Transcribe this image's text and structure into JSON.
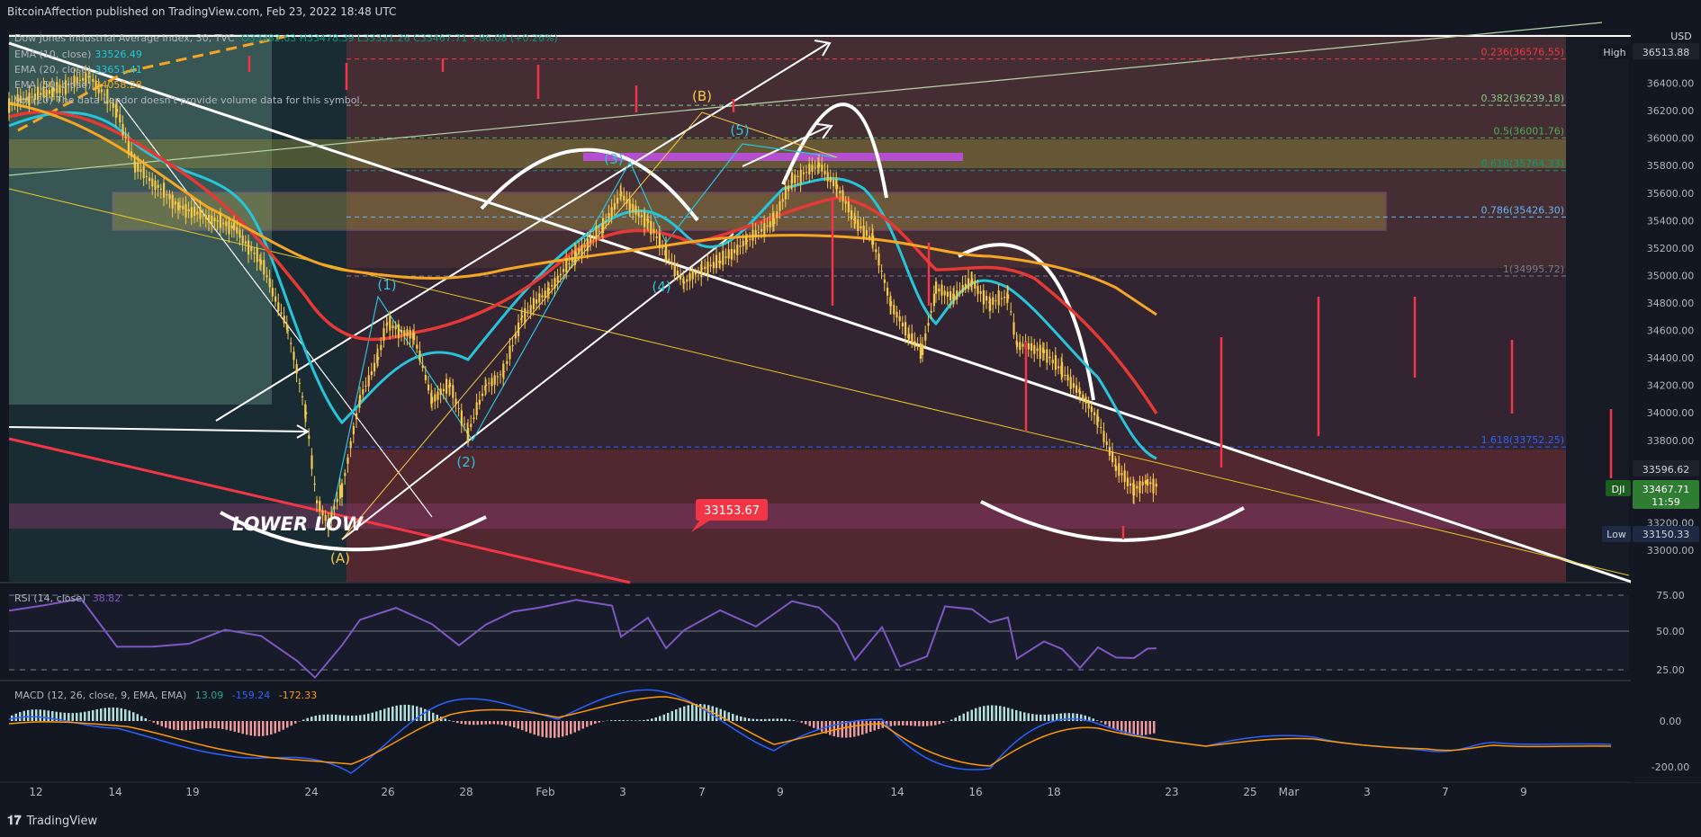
{
  "header": {
    "publisher": "BitcoinAffection published on TradingView.com, Feb 23, 2022 18:48 UTC"
  },
  "legend": {
    "symbol_line": "Dow Jones Industrial Average Index, 30, TVC",
    "ohlc": "O33382.63 H33478.39 L33331.26 C33467.71 +86.08 (+0.26%)",
    "ema1": {
      "label": "EMA (10, close)",
      "value": "33526.49"
    },
    "ema2": {
      "label": "EMA (20, close)",
      "value": "33651.41"
    },
    "ema3": {
      "label": "EMA (50, close)",
      "value": "34058.28"
    },
    "vol": "Vol (20) The data vendor doesn't provide volume data for this symbol."
  },
  "price_axis": {
    "currency": "USD",
    "ticks": [
      "36600.00",
      "36400.00",
      "36200.00",
      "36000.00",
      "35800.00",
      "35600.00",
      "35400.00",
      "35200.00",
      "35000.00",
      "34800.00",
      "34600.00",
      "34400.00",
      "34200.00",
      "34000.00",
      "33800.00",
      "33600.00",
      "33400.00",
      "33200.00",
      "33000.00"
    ],
    "high": {
      "label": "High",
      "value": "36513.88"
    },
    "low": {
      "label": "Low",
      "value": "33150.33"
    },
    "last": {
      "label": "DJI",
      "value": "33467.71",
      "countdown": "11:59"
    },
    "mark": "33596.62"
  },
  "time_axis": [
    "12",
    "14",
    "19",
    "24",
    "26",
    "28",
    "Feb",
    "3",
    "7",
    "9",
    "14",
    "16",
    "18",
    "23",
    "25",
    "Mar",
    "3",
    "7",
    "9"
  ],
  "fib_levels": [
    {
      "label": "0.236(36576.55)",
      "price": 36576,
      "color": "#f23645"
    },
    {
      "label": "0.382(36239.18)",
      "price": 36239,
      "color": "#81c784"
    },
    {
      "label": "0.5(36001.76)",
      "price": 36002,
      "color": "#4caf50"
    },
    {
      "label": "0.618(35764.33)",
      "price": 35764,
      "color": "#089981"
    },
    {
      "label": "0.786(35426.30)",
      "price": 35426,
      "color": "#64b5f6"
    },
    {
      "label": "1(34995.72)",
      "price": 34996,
      "color": "#787b86"
    },
    {
      "label": "1.618(33752.25)",
      "price": 33752,
      "color": "#2962ff"
    }
  ],
  "annotations": {
    "price_callout": "33153.67",
    "lower_low": "LOWER LOW",
    "wave_A": "(A)",
    "wave_B": "(B)",
    "wave_1": "(1)",
    "wave_2": "(2)",
    "wave_3": "(3)",
    "wave_4": "(4)",
    "wave_5": "(5)"
  },
  "rsi": {
    "label": "RSI (14, close)",
    "value": "38.82",
    "ticks": [
      "75.00",
      "50.00",
      "25.00"
    ],
    "color": "#7e57c2"
  },
  "macd": {
    "label": "MACD (12, 26, close, 9, EMA, EMA)",
    "hist": "13.09",
    "macd": "-159.24",
    "signal": "-172.33",
    "ticks": [
      "0.00",
      "-200.00"
    ]
  },
  "footer": {
    "brand": "TradingView"
  },
  "chart_data": {
    "type": "line",
    "title": "Dow Jones Industrial Average Index, 30, TVC",
    "series": [
      {
        "name": "DJI (approx. closes)",
        "x": [
          "Jan 12",
          "Jan 14",
          "Jan 19",
          "Jan 24",
          "Jan 26",
          "Jan 28",
          "Feb 1",
          "Feb 3",
          "Feb 7",
          "Feb 9",
          "Feb 14",
          "Feb 16",
          "Feb 18",
          "Feb 23"
        ],
        "values": [
          36250,
          35800,
          35200,
          33600,
          34700,
          34300,
          35400,
          35500,
          35100,
          35600,
          34450,
          34950,
          34100,
          33468
        ]
      }
    ],
    "ylim": [
      32800,
      36700
    ],
    "colors": {
      "candles": "#f7c948",
      "ema10": "#26c6da",
      "ema20": "#e53935",
      "ema50": "#f5a623",
      "trend": "#ffffff"
    }
  }
}
